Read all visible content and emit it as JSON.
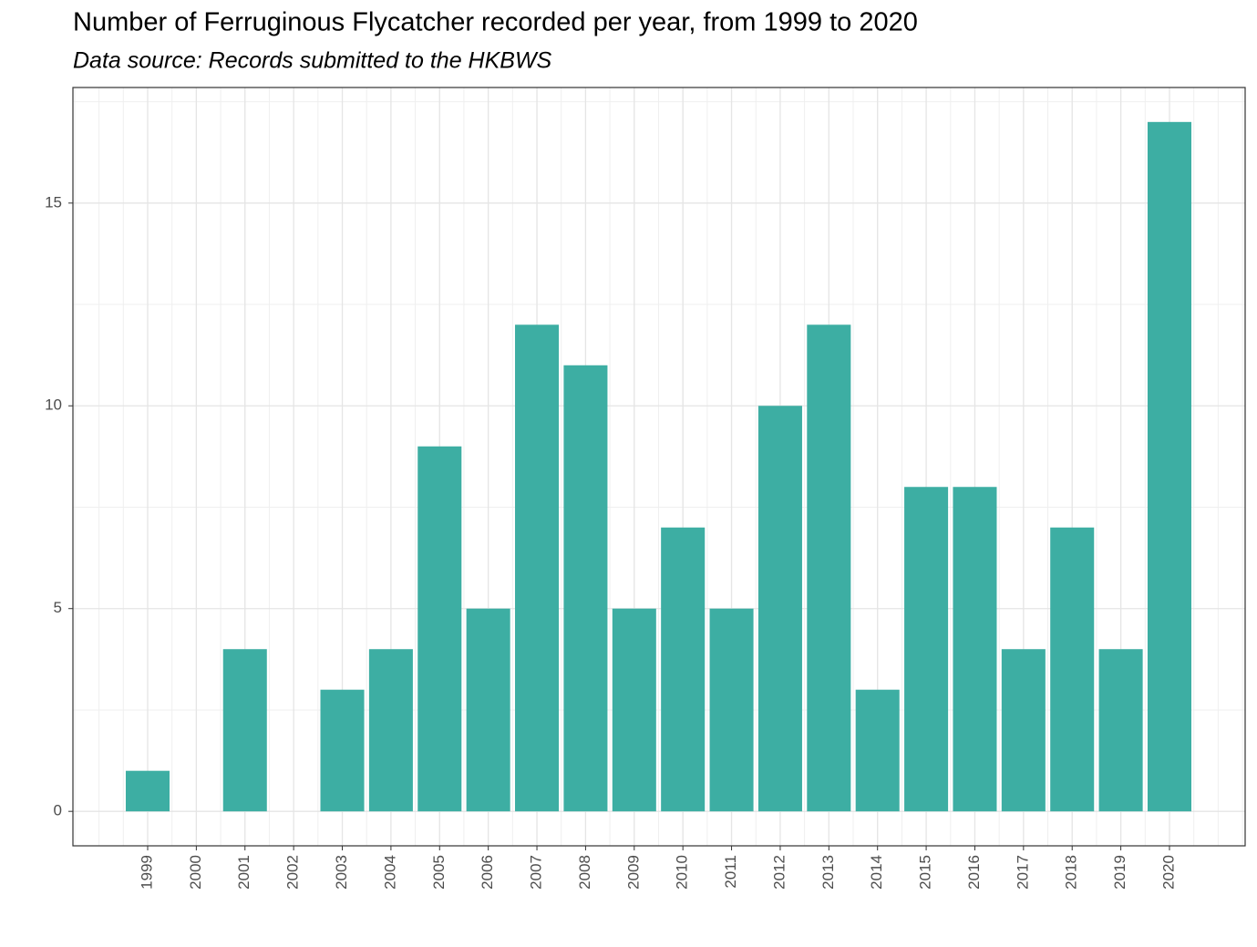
{
  "chart_data": {
    "type": "bar",
    "title": "Number of Ferruginous Flycatcher recorded per year, from 1999 to 2020",
    "subtitle": "Data source: Records submitted to the HKBWS",
    "categories": [
      "1999",
      "2000",
      "2001",
      "2002",
      "2003",
      "2004",
      "2005",
      "2006",
      "2007",
      "2008",
      "2009",
      "2010",
      "2011",
      "2012",
      "2013",
      "2014",
      "2015",
      "2016",
      "2017",
      "2018",
      "2019",
      "2020"
    ],
    "values": [
      1,
      0,
      4,
      0,
      3,
      4,
      9,
      5,
      12,
      11,
      5,
      7,
      5,
      10,
      12,
      3,
      8,
      8,
      4,
      7,
      4,
      17
    ],
    "color": "#3daea3",
    "ylim": [
      -0.85,
      17.85
    ],
    "yticks": [
      0,
      5,
      10,
      15
    ],
    "grid": true
  }
}
